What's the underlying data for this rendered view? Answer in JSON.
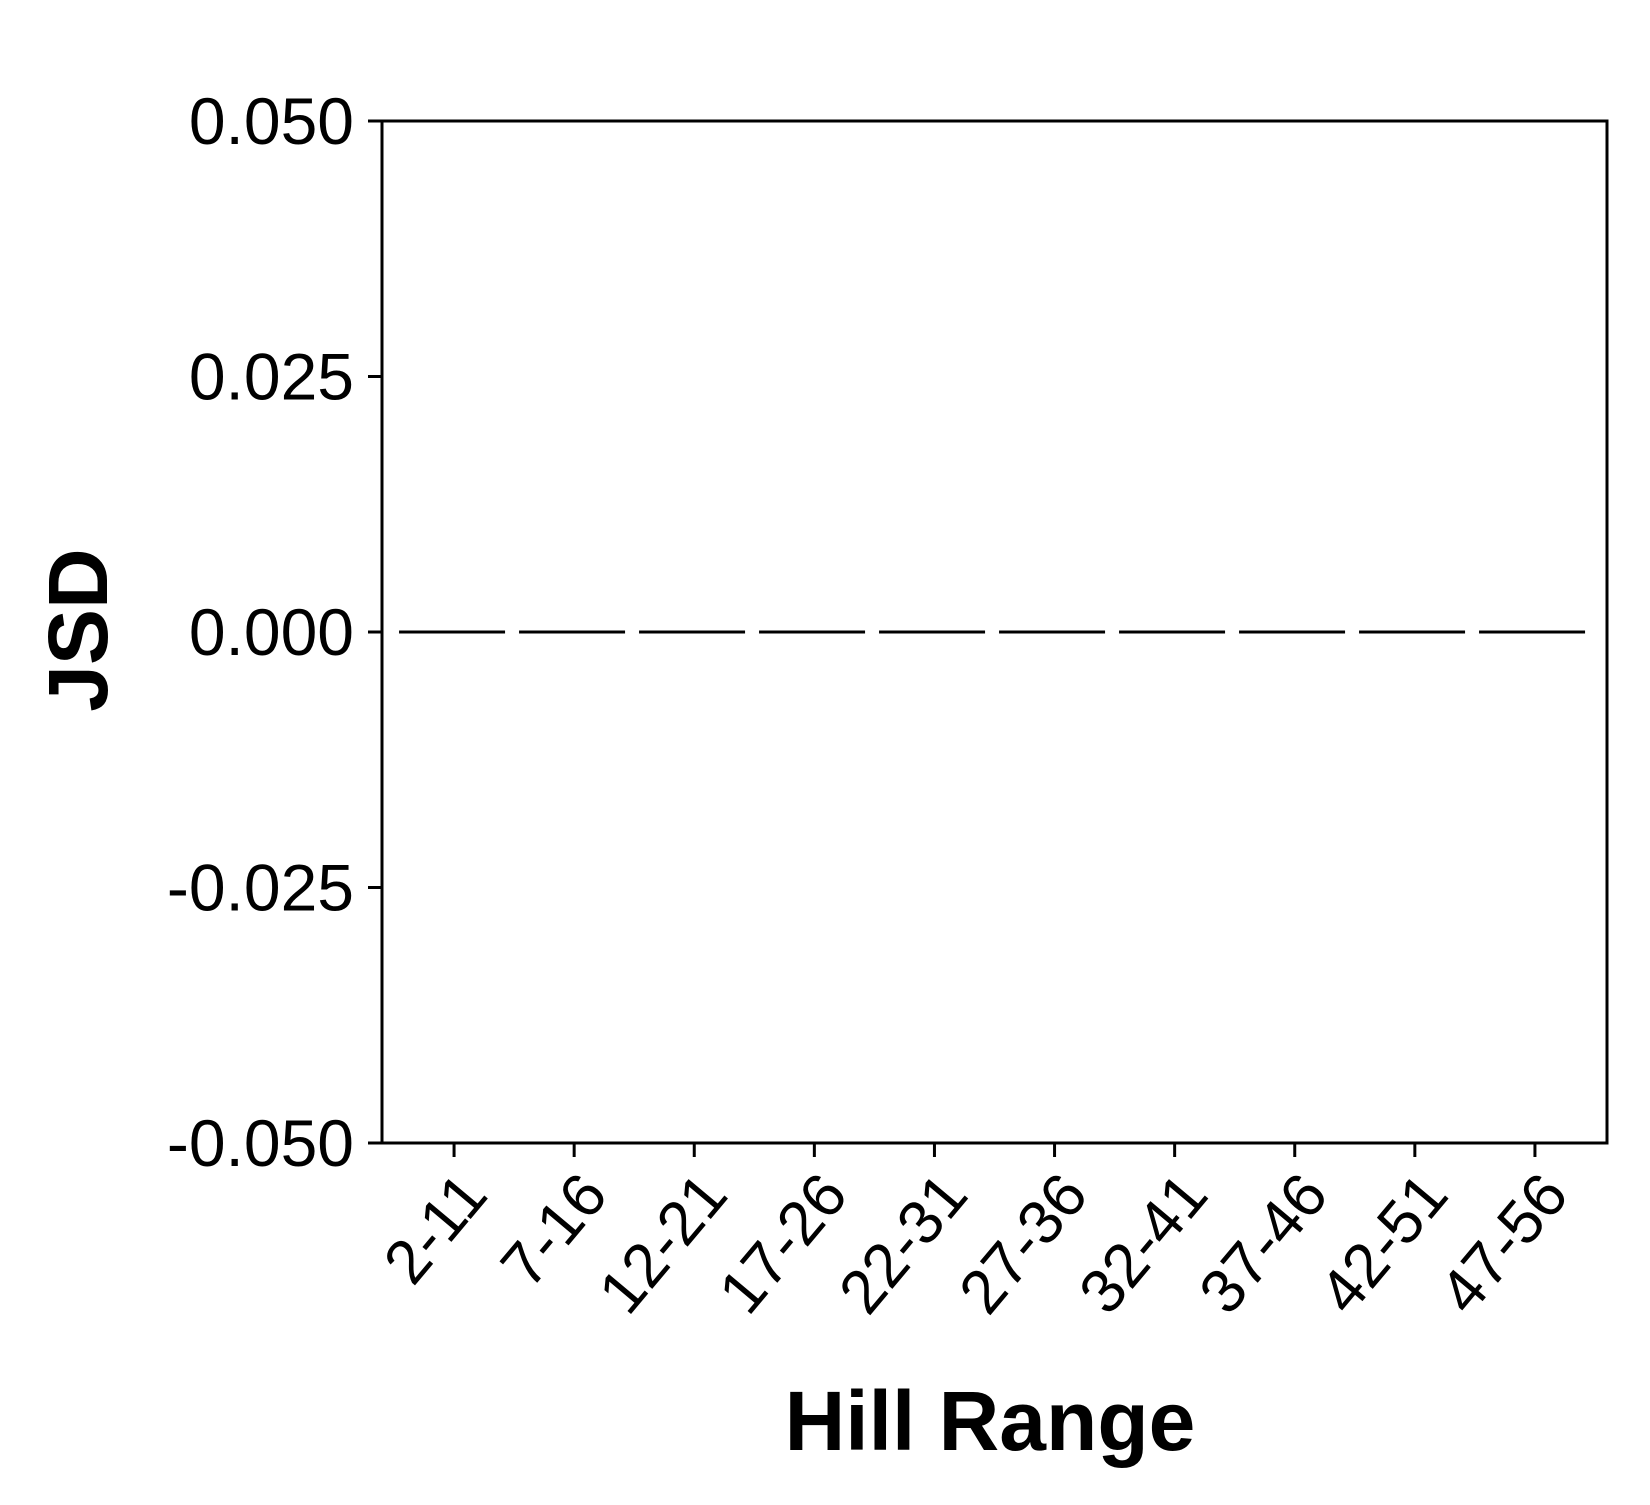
{
  "chart_data": {
    "type": "line",
    "title": "",
    "xlabel": "Hill Range",
    "ylabel": "JSD",
    "categories": [
      "2-11",
      "7-16",
      "12-21",
      "17-26",
      "22-31",
      "27-36",
      "32-41",
      "37-46",
      "42-51",
      "47-56"
    ],
    "series": [
      {
        "values": [
          0,
          0,
          0,
          0,
          0,
          0,
          0,
          0,
          0,
          0
        ]
      }
    ],
    "ylim": [
      -0.05,
      0.05
    ],
    "yticks": [
      -0.05,
      -0.025,
      0.0,
      0.025,
      0.05
    ],
    "ytick_labels": [
      "-0.050",
      "-0.025",
      "0.000",
      "0.025",
      "0.050"
    ],
    "grid": false,
    "legend": "none",
    "line_style": "dashed",
    "colors": {
      "line": "#000000",
      "axis": "#000000",
      "background": "#ffffff"
    }
  }
}
